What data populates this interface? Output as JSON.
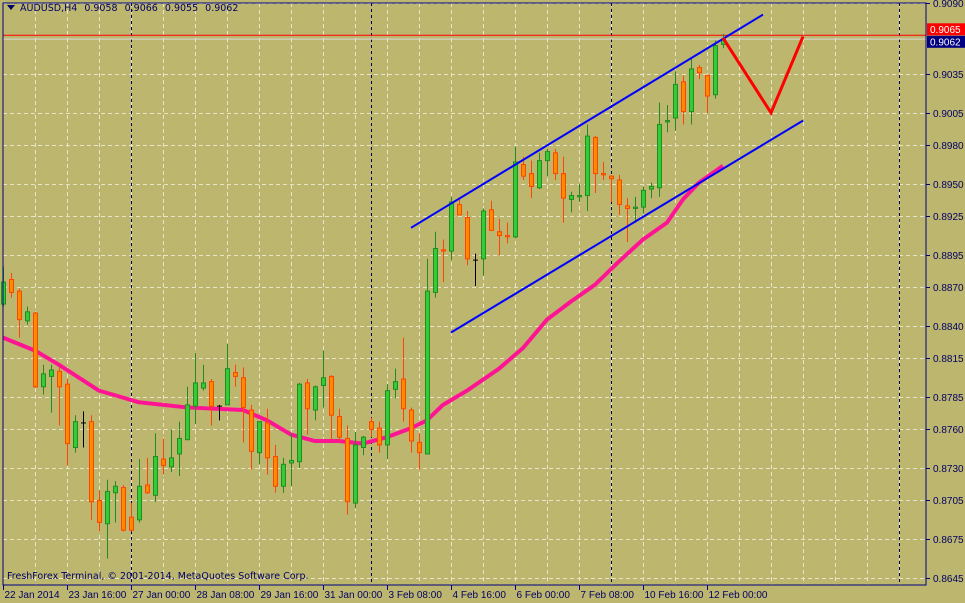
{
  "header": {
    "symbol": "AUDUSD,H4",
    "open": "0.9058",
    "high": "0.9066",
    "low": "0.9055",
    "close": "0.9062"
  },
  "copyright": "FreshForex Terminal, © 2001-2014, MetaQuotes Software Corp.",
  "colors": {
    "background": "#bdb66e",
    "axis": "#000080",
    "bull_body": "#32cd32",
    "bull_outline": "#228b22",
    "bear_body": "#ff8c00",
    "bear_outline": "#ff4500",
    "doji": "#000000",
    "moving_average": "#ff1493",
    "channel": "#0000ff",
    "projection": "#ff0000",
    "grid": "#e8e4c8"
  },
  "chart_data": {
    "type": "candlestick",
    "title": "AUDUSD,H4",
    "ylim": [
      0.8645,
      0.909
    ],
    "grid": true,
    "y_ticks": [
      "0.9090",
      "0.9035",
      "0.9005",
      "0.8980",
      "0.8950",
      "0.8925",
      "0.8895",
      "0.8870",
      "0.8840",
      "0.8815",
      "0.8785",
      "0.8760",
      "0.8730",
      "0.8705",
      "0.8675",
      "0.8645"
    ],
    "x_ticks": [
      "22 Jan 2014",
      "23 Jan 16:00",
      "27 Jan 00:00",
      "28 Jan 08:00",
      "29 Jan 16:00",
      "31 Jan 00:00",
      "3 Feb 08:00",
      "4 Feb 16:00",
      "6 Feb 00:00",
      "7 Feb 08:00",
      "10 Feb 16:00",
      "12 Feb 00:00"
    ],
    "bid_price": "0.9062",
    "horizontal_line_price": "0.9065",
    "candles_ohlc": [
      [
        0.8857,
        0.8886,
        0.8855,
        0.8874
      ],
      [
        0.8876,
        0.8881,
        0.8862,
        0.8866
      ],
      [
        0.8867,
        0.8869,
        0.8831,
        0.8845
      ],
      [
        0.8844,
        0.8855,
        0.8841,
        0.8851
      ],
      [
        0.885,
        0.8851,
        0.8792,
        0.8793
      ],
      [
        0.8793,
        0.881,
        0.8787,
        0.8803
      ],
      [
        0.8801,
        0.881,
        0.8773,
        0.8806
      ],
      [
        0.8805,
        0.8808,
        0.8763,
        0.8793
      ],
      [
        0.8795,
        0.8799,
        0.8732,
        0.8749
      ],
      [
        0.8746,
        0.8771,
        0.8742,
        0.8766
      ],
      [
        0.8765,
        0.8774,
        0.8746,
        0.8765
      ],
      [
        0.8766,
        0.8771,
        0.869,
        0.8704
      ],
      [
        0.8705,
        0.8713,
        0.8681,
        0.8688
      ],
      [
        0.8687,
        0.8721,
        0.866,
        0.8712
      ],
      [
        0.8711,
        0.872,
        0.8688,
        0.8716
      ],
      [
        0.8715,
        0.8717,
        0.8681,
        0.8682
      ],
      [
        0.8692,
        0.8703,
        0.8681,
        0.8682
      ],
      [
        0.869,
        0.8737,
        0.8688,
        0.8716
      ],
      [
        0.8717,
        0.8738,
        0.871,
        0.8711
      ],
      [
        0.8709,
        0.8757,
        0.8704,
        0.8739
      ],
      [
        0.8737,
        0.8753,
        0.8725,
        0.8732
      ],
      [
        0.8731,
        0.876,
        0.8727,
        0.8738
      ],
      [
        0.8741,
        0.8766,
        0.8724,
        0.8753
      ],
      [
        0.8752,
        0.8793,
        0.8752,
        0.8779
      ],
      [
        0.8778,
        0.8819,
        0.8764,
        0.8796
      ],
      [
        0.8792,
        0.881,
        0.879,
        0.8796
      ],
      [
        0.8797,
        0.8799,
        0.8763,
        0.8778
      ],
      [
        0.8778,
        0.8779,
        0.8767,
        0.8778
      ],
      [
        0.8779,
        0.8826,
        0.8779,
        0.8807
      ],
      [
        0.8804,
        0.881,
        0.8793,
        0.8801
      ],
      [
        0.88,
        0.8808,
        0.875,
        0.8777
      ],
      [
        0.8775,
        0.8779,
        0.8729,
        0.8743
      ],
      [
        0.8742,
        0.8766,
        0.8733,
        0.8766
      ],
      [
        0.8765,
        0.8776,
        0.8725,
        0.8738
      ],
      [
        0.8739,
        0.8748,
        0.8711,
        0.8716
      ],
      [
        0.8716,
        0.8738,
        0.8711,
        0.8733
      ],
      [
        0.8734,
        0.8757,
        0.8716,
        0.8736
      ],
      [
        0.8735,
        0.8796,
        0.873,
        0.8795
      ],
      [
        0.8796,
        0.8799,
        0.8756,
        0.8776
      ],
      [
        0.8775,
        0.8794,
        0.8767,
        0.8793
      ],
      [
        0.8794,
        0.8821,
        0.8777,
        0.88
      ],
      [
        0.8801,
        0.8802,
        0.8752,
        0.8771
      ],
      [
        0.877,
        0.8776,
        0.8751,
        0.8754
      ],
      [
        0.8753,
        0.8763,
        0.8694,
        0.8704
      ],
      [
        0.8703,
        0.8758,
        0.8699,
        0.8748
      ],
      [
        0.8746,
        0.8755,
        0.874,
        0.8754
      ],
      [
        0.8766,
        0.8769,
        0.8754,
        0.876
      ],
      [
        0.8761,
        0.8766,
        0.8742,
        0.8748
      ],
      [
        0.8748,
        0.8795,
        0.8737,
        0.879
      ],
      [
        0.8791,
        0.8807,
        0.8784,
        0.8797
      ],
      [
        0.8799,
        0.8831,
        0.8766,
        0.8776
      ],
      [
        0.8775,
        0.8777,
        0.8742,
        0.8751
      ],
      [
        0.875,
        0.8757,
        0.8729,
        0.8742
      ],
      [
        0.8741,
        0.8892,
        0.8741,
        0.8867
      ],
      [
        0.8866,
        0.8913,
        0.8862,
        0.89
      ],
      [
        0.8899,
        0.8907,
        0.8874,
        0.8898
      ],
      [
        0.8898,
        0.894,
        0.8891,
        0.8936
      ],
      [
        0.8934,
        0.8938,
        0.8926,
        0.8926
      ],
      [
        0.8924,
        0.8929,
        0.8887,
        0.8892
      ],
      [
        0.8891,
        0.8896,
        0.8871,
        0.8891
      ],
      [
        0.8892,
        0.8931,
        0.8879,
        0.8929
      ],
      [
        0.893,
        0.8937,
        0.8914,
        0.8914
      ],
      [
        0.8913,
        0.8923,
        0.8895,
        0.891
      ],
      [
        0.891,
        0.892,
        0.8904,
        0.8909
      ],
      [
        0.8909,
        0.8979,
        0.8908,
        0.8967
      ],
      [
        0.8965,
        0.8971,
        0.8953,
        0.8956
      ],
      [
        0.8958,
        0.8968,
        0.8939,
        0.8948
      ],
      [
        0.8947,
        0.8974,
        0.8946,
        0.8968
      ],
      [
        0.8968,
        0.8977,
        0.8956,
        0.8975
      ],
      [
        0.8974,
        0.8977,
        0.8953,
        0.8958
      ],
      [
        0.8958,
        0.8971,
        0.892,
        0.8939
      ],
      [
        0.8938,
        0.8944,
        0.8928,
        0.8941
      ],
      [
        0.894,
        0.895,
        0.8936,
        0.8941
      ],
      [
        0.8941,
        0.8996,
        0.8929,
        0.8987
      ],
      [
        0.8986,
        0.8987,
        0.8943,
        0.8958
      ],
      [
        0.8958,
        0.8967,
        0.8953,
        0.8957
      ],
      [
        0.8956,
        0.8957,
        0.8936,
        0.8954
      ],
      [
        0.8953,
        0.8957,
        0.8926,
        0.8934
      ],
      [
        0.8933,
        0.8939,
        0.8905,
        0.8931
      ],
      [
        0.8931,
        0.894,
        0.892,
        0.8932
      ],
      [
        0.8932,
        0.8948,
        0.8927,
        0.8945
      ],
      [
        0.8946,
        0.8951,
        0.8939,
        0.8948
      ],
      [
        0.8947,
        0.9013,
        0.894,
        0.8996
      ],
      [
        0.8998,
        0.9011,
        0.899,
        0.8999
      ],
      [
        0.9001,
        0.9037,
        0.8991,
        0.9027
      ],
      [
        0.9029,
        0.9034,
        0.8996,
        0.9006
      ],
      [
        0.9006,
        0.9048,
        0.8996,
        0.9039
      ],
      [
        0.904,
        0.9042,
        0.9031,
        0.9036
      ],
      [
        0.9034,
        0.9034,
        0.9005,
        0.9018
      ],
      [
        0.9019,
        0.9061,
        0.9016,
        0.9057
      ],
      [
        0.9058,
        0.9066,
        0.9055,
        0.9062
      ]
    ],
    "moving_average": [
      [
        0,
        0.8831
      ],
      [
        4,
        0.8821
      ],
      [
        7,
        0.881
      ],
      [
        12,
        0.879
      ],
      [
        17,
        0.8781
      ],
      [
        23,
        0.8777
      ],
      [
        30,
        0.8775
      ],
      [
        33,
        0.8767
      ],
      [
        36,
        0.8756
      ],
      [
        39,
        0.8751
      ],
      [
        42,
        0.8751
      ],
      [
        45,
        0.8749
      ],
      [
        48,
        0.8754
      ],
      [
        51,
        0.8761
      ],
      [
        53,
        0.8767
      ],
      [
        55,
        0.8779
      ],
      [
        58,
        0.879
      ],
      [
        62,
        0.8807
      ],
      [
        65,
        0.8823
      ],
      [
        68,
        0.8845
      ],
      [
        71,
        0.8859
      ],
      [
        74,
        0.8872
      ],
      [
        77,
        0.889
      ],
      [
        80,
        0.8907
      ],
      [
        83,
        0.892
      ],
      [
        85,
        0.8938
      ],
      [
        87,
        0.8951
      ],
      [
        90,
        0.8964
      ]
    ],
    "channel_upper": [
      [
        51,
        0.8916
      ],
      [
        95,
        0.9081
      ]
    ],
    "channel_lower": [
      [
        56,
        0.8835
      ],
      [
        100,
        0.8999
      ]
    ],
    "projection": [
      [
        90,
        0.9063
      ],
      [
        96,
        0.9005
      ],
      [
        100,
        0.9064
      ]
    ]
  }
}
